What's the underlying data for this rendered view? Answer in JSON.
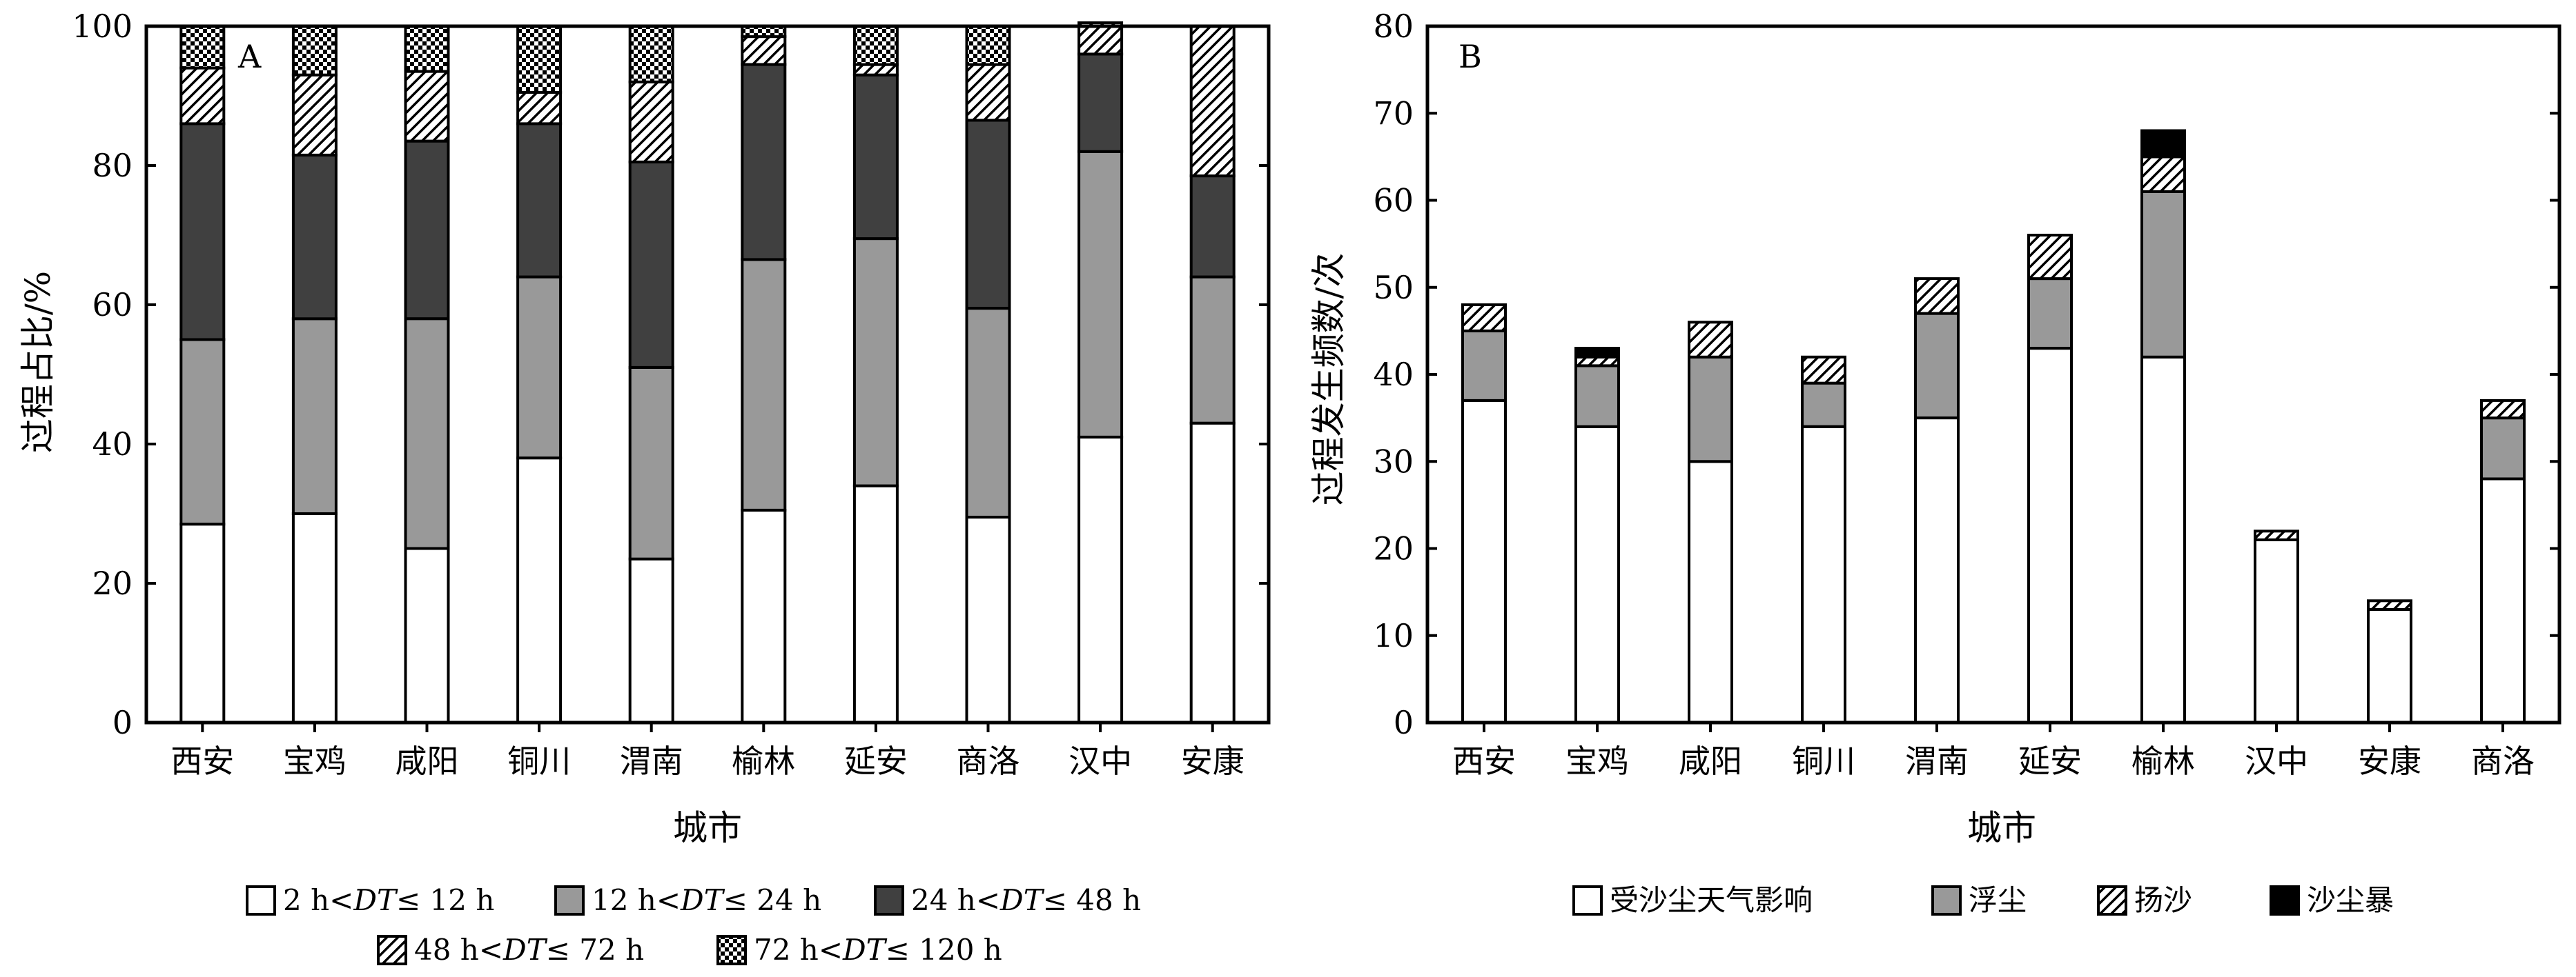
{
  "colors": {
    "white_fill": "#ffffff",
    "light_gray": "#999999",
    "dark_gray": "#404040",
    "black": "#000000",
    "hatch": "diagonal-hatch",
    "crosshatch": "checker-pattern"
  },
  "chart_data": [
    {
      "type": "bar",
      "stacked": true,
      "panel_label": "A",
      "xlabel": "城市",
      "ylabel": "过程占比/%",
      "ylim": [
        0,
        100
      ],
      "yticks": [
        "0",
        "20",
        "40",
        "60",
        "80",
        "100"
      ],
      "categories": [
        "西安",
        "宝鸡",
        "咸阳",
        "铜川",
        "渭南",
        "榆林",
        "延安",
        "商洛",
        "汉中",
        "安康"
      ],
      "legend_position": "bottom",
      "series": [
        {
          "name_prefix": "2 h<",
          "name_var": "DT",
          "name_suffix": "≤ 12 h",
          "fill": "white",
          "values": [
            28.5,
            30,
            25,
            38,
            23.5,
            30.5,
            34,
            29.5,
            41,
            43
          ]
        },
        {
          "name_prefix": "12 h<",
          "name_var": "DT",
          "name_suffix": "≤ 24 h",
          "fill": "light_gray",
          "values": [
            26.5,
            28,
            33,
            26,
            27.5,
            36,
            35.5,
            30,
            41,
            21
          ]
        },
        {
          "name_prefix": "24 h<",
          "name_var": "DT",
          "name_suffix": "≤ 48 h",
          "fill": "dark_gray",
          "values": [
            31,
            23.5,
            25.5,
            22,
            29.5,
            28,
            23.5,
            27,
            14,
            14.5
          ]
        },
        {
          "name_prefix": "48 h<",
          "name_var": "DT",
          "name_suffix": "≤ 72 h",
          "fill": "hatch",
          "values": [
            8,
            11.5,
            10,
            4.5,
            11.5,
            4,
            1.5,
            8,
            4.5,
            21.5
          ]
        },
        {
          "name_prefix": "72 h<",
          "name_var": "DT",
          "name_suffix": "≤ 120 h",
          "fill": "crosshatch",
          "values": [
            6,
            7,
            6.5,
            9.5,
            8,
            1.5,
            5.5,
            5.5,
            0,
            0
          ]
        }
      ]
    },
    {
      "type": "bar",
      "stacked": true,
      "panel_label": "B",
      "xlabel": "城市",
      "ylabel": "过程发生频数/次",
      "ylim": [
        0,
        80
      ],
      "yticks": [
        "0",
        "10",
        "20",
        "30",
        "40",
        "50",
        "60",
        "70",
        "80"
      ],
      "categories": [
        "西安",
        "宝鸡",
        "咸阳",
        "铜川",
        "渭南",
        "延安",
        "榆林",
        "汉中",
        "安康",
        "商洛"
      ],
      "legend_position": "bottom",
      "series": [
        {
          "name": "受沙尘天气影响",
          "fill": "white",
          "values": [
            37,
            34,
            30,
            34,
            35,
            43,
            42,
            21,
            13,
            28
          ]
        },
        {
          "name": "浮尘",
          "fill": "light_gray",
          "values": [
            8,
            7,
            12,
            5,
            12,
            8,
            19,
            0,
            0,
            7
          ]
        },
        {
          "name": "扬沙",
          "fill": "hatch",
          "values": [
            3,
            1,
            4,
            3,
            4,
            5,
            4,
            1,
            1,
            2
          ]
        },
        {
          "name": "沙尘暴",
          "fill": "black",
          "values": [
            0,
            1,
            0,
            0,
            0,
            0,
            3,
            0,
            0,
            0
          ]
        }
      ]
    }
  ]
}
